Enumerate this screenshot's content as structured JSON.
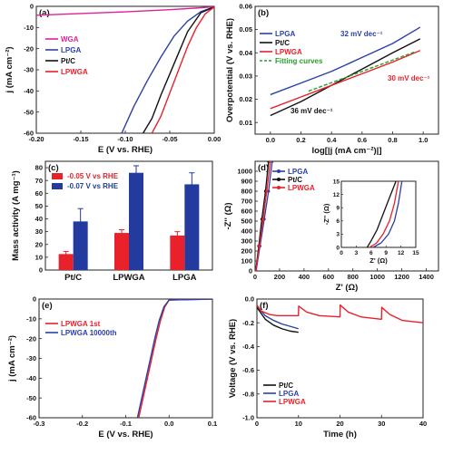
{
  "chart_data": [
    {
      "panel": "(a)",
      "type": "line",
      "xlabel": "E (V vs. RHE)",
      "ylabel": "j (mA cm⁻²)",
      "xlim": [
        -0.2,
        0.0
      ],
      "ylim": [
        -60,
        0
      ],
      "xticks": [
        "-0.20",
        "-0.15",
        "-0.10",
        "-0.05",
        "0.00"
      ],
      "yticks": [
        "0",
        "-10",
        "-20",
        "-30",
        "-40",
        "-50",
        "-60"
      ],
      "legend": "top-left",
      "series": [
        {
          "name": "WGA",
          "color": "#e0209a",
          "x": [
            -0.2,
            -0.15,
            -0.1,
            -0.05,
            -0.02,
            0.0
          ],
          "y": [
            -4.2,
            -3.4,
            -2.6,
            -1.6,
            -0.8,
            -0.2
          ]
        },
        {
          "name": "LPGA",
          "color": "#2b3fa8",
          "x": [
            -0.104,
            -0.09,
            -0.075,
            -0.06,
            -0.045,
            -0.03,
            -0.015,
            0.0
          ],
          "y": [
            -60,
            -47,
            -35,
            -24,
            -14,
            -7,
            -2.5,
            -0.3
          ]
        },
        {
          "name": "Pt/C",
          "color": "#111111",
          "x": [
            -0.08,
            -0.07,
            -0.06,
            -0.05,
            -0.04,
            -0.03,
            -0.015,
            0.0
          ],
          "y": [
            -60,
            -53,
            -42,
            -32,
            -22,
            -12,
            -3,
            -0.3
          ]
        },
        {
          "name": "LPWGA",
          "color": "#e8212b",
          "x": [
            -0.07,
            -0.06,
            -0.05,
            -0.04,
            -0.03,
            -0.02,
            -0.01,
            0.0
          ],
          "y": [
            -60,
            -52,
            -41,
            -30,
            -19,
            -10,
            -3.5,
            -0.3
          ]
        }
      ]
    },
    {
      "panel": "(b)",
      "type": "line",
      "xlabel": "log[|j (mA cm⁻²)|]",
      "ylabel": "Overpotential (V vs. RHE)",
      "xlim": [
        -0.1,
        1.1
      ],
      "ylim": [
        0.005,
        0.06
      ],
      "xticks": [
        "0.0",
        "0.2",
        "0.4",
        "0.6",
        "0.8",
        "1.0"
      ],
      "yticks": [
        "0.01",
        "0.02",
        "0.03",
        "0.04",
        "0.05",
        "0.06"
      ],
      "legend": "top-left",
      "series": [
        {
          "name": "LPGA",
          "color": "#2b3fa8",
          "x": [
            0.0,
            0.2,
            0.4,
            0.6,
            0.8,
            0.98
          ],
          "y": [
            0.022,
            0.027,
            0.032,
            0.038,
            0.044,
            0.051
          ]
        },
        {
          "name": "Pt/C",
          "color": "#111111",
          "x": [
            0.0,
            0.2,
            0.4,
            0.6,
            0.8,
            0.98
          ],
          "y": [
            0.013,
            0.019,
            0.026,
            0.033,
            0.04,
            0.046
          ]
        },
        {
          "name": "LPWGA",
          "color": "#e8212b",
          "x": [
            0.0,
            0.2,
            0.4,
            0.6,
            0.8,
            0.98
          ],
          "y": [
            0.016,
            0.021,
            0.026,
            0.031,
            0.036,
            0.041
          ]
        },
        {
          "name": "Fitting curves",
          "color": "#2aa02a",
          "dashed": true,
          "x": [
            0.25,
            0.95
          ],
          "y": [
            0.0235,
            0.0405
          ]
        }
      ],
      "annotations": [
        {
          "text": "32 mV dec⁻¹",
          "color": "#2b3fa8"
        },
        {
          "text": "30 mV dec⁻¹",
          "color": "#e8212b"
        },
        {
          "text": "36 mV dec⁻¹",
          "color": "#111111"
        }
      ]
    },
    {
      "panel": "(c)",
      "type": "bar",
      "ylabel": "Mass activity (A mg⁻¹)",
      "ylim": [
        0,
        85
      ],
      "yticks": [
        "0",
        "10",
        "20",
        "30",
        "40",
        "50",
        "60",
        "70",
        "80"
      ],
      "categories": [
        "Pt/C",
        "LPWGA",
        "LPGA"
      ],
      "legend": "top-left",
      "series": [
        {
          "name": "-0.05 V vs RHE",
          "color": "#e8212b",
          "values": [
            12.5,
            29,
            27
          ],
          "errors": [
            2,
            2.5,
            3
          ]
        },
        {
          "name": "-0.07 V vs RHE",
          "color": "#233a9e",
          "values": [
            38,
            76,
            67
          ],
          "errors": [
            10,
            5.5,
            9
          ]
        }
      ]
    },
    {
      "panel": "(d)",
      "type": "scatter",
      "xlabel": "Z' (Ω)",
      "ylabel": "-Z'' (Ω)",
      "xlim": [
        0,
        1500
      ],
      "ylim": [
        0,
        1100
      ],
      "xticks": [
        "0",
        "200",
        "400",
        "600",
        "800",
        "1000",
        "1200",
        "1400"
      ],
      "yticks": [
        "0",
        "100",
        "200",
        "300",
        "400",
        "500",
        "600",
        "700",
        "800",
        "900",
        "1000"
      ],
      "legend": "top-left",
      "series": [
        {
          "name": "LPGA",
          "color": "#2b3fa8",
          "x": [
            8,
            40,
            75,
            110,
            140
          ],
          "y": [
            0,
            250,
            520,
            800,
            1100
          ]
        },
        {
          "name": "Pt/C",
          "color": "#111111",
          "x": [
            5,
            30,
            55,
            85,
            110
          ],
          "y": [
            0,
            250,
            520,
            800,
            1100
          ]
        },
        {
          "name": "LPWGA",
          "color": "#e8212b",
          "x": [
            6,
            35,
            65,
            95,
            125
          ],
          "y": [
            0,
            250,
            520,
            800,
            1100
          ]
        }
      ],
      "inset": {
        "xlabel": "Z' (Ω)",
        "ylabel": "-Z'' (Ω)",
        "xlim": [
          0,
          15
        ],
        "ylim": [
          0,
          15
        ],
        "xticks": [
          "0",
          "3",
          "6",
          "9",
          "12",
          "15"
        ],
        "yticks": [
          "0",
          "3",
          "6",
          "9",
          "12",
          "15"
        ],
        "series": [
          {
            "name": "LPGA",
            "color": "#2b3fa8",
            "x": [
              6.4,
              8.0,
              9.5,
              10.7,
              11.5,
              12.2
            ],
            "y": [
              0,
              1,
              3,
              6,
              10,
              15
            ]
          },
          {
            "name": "Pt/C",
            "color": "#111111",
            "x": [
              5.2,
              6.0,
              7.2,
              8.4,
              9.6,
              11.0
            ],
            "y": [
              0,
              1.5,
              4,
              7.5,
              11,
              15
            ]
          },
          {
            "name": "LPWGA",
            "color": "#e8212b",
            "x": [
              5.7,
              7.1,
              8.4,
              9.7,
              10.7,
              11.5
            ],
            "y": [
              0,
              1,
              3,
              6,
              10,
              15
            ]
          }
        ]
      }
    },
    {
      "panel": "(e)",
      "type": "line",
      "xlabel": "E (V vs. RHE)",
      "ylabel": "j (mA cm⁻²)",
      "xlim": [
        -0.3,
        0.1
      ],
      "ylim": [
        -60,
        0
      ],
      "xticks": [
        "-0.3",
        "-0.2",
        "-0.1",
        "0.0",
        "0.1"
      ],
      "yticks": [
        "0",
        "-10",
        "-20",
        "-30",
        "-40",
        "-50",
        "-60"
      ],
      "legend": "top-left",
      "series": [
        {
          "name": "LPWGA 1st",
          "color": "#e8212b",
          "x": [
            -0.07,
            -0.06,
            -0.05,
            -0.04,
            -0.03,
            -0.02,
            -0.01,
            0.0,
            0.1
          ],
          "y": [
            -60,
            -50,
            -40,
            -30,
            -20,
            -11,
            -4,
            -0.5,
            0
          ]
        },
        {
          "name": "LPWGA 10000th",
          "color": "#2b3fa8",
          "x": [
            -0.073,
            -0.063,
            -0.053,
            -0.043,
            -0.033,
            -0.023,
            -0.012,
            0.0,
            0.1
          ],
          "y": [
            -60,
            -50,
            -40,
            -30,
            -20,
            -11,
            -4,
            -0.5,
            0
          ]
        }
      ]
    },
    {
      "panel": "(f)",
      "type": "line",
      "xlabel": "Time (h)",
      "ylabel": "Voltage (V vs. RHE)",
      "xlim": [
        0,
        40
      ],
      "ylim": [
        -1.0,
        0
      ],
      "xticks": [
        "0",
        "10",
        "20",
        "30",
        "40"
      ],
      "yticks": [
        "0.0",
        "-0.2",
        "-0.4",
        "-0.6",
        "-0.8",
        "-1.0"
      ],
      "legend": "bottom-left",
      "series": [
        {
          "name": "Pt/C",
          "color": "#111111",
          "x": [
            0,
            1,
            2,
            4,
            6,
            8,
            10
          ],
          "y": [
            -0.07,
            -0.12,
            -0.17,
            -0.22,
            -0.25,
            -0.27,
            -0.28
          ]
        },
        {
          "name": "LPGA",
          "color": "#2b3fa8",
          "x": [
            0,
            1,
            2,
            4,
            6,
            8,
            10
          ],
          "y": [
            -0.06,
            -0.1,
            -0.14,
            -0.18,
            -0.21,
            -0.23,
            -0.25
          ]
        },
        {
          "name": "LPWGA",
          "color": "#e8212b",
          "x": [
            0,
            1,
            3,
            5,
            8,
            10,
            10.05,
            12,
            15,
            19.9,
            20,
            20.05,
            22,
            25,
            29.9,
            30,
            30.05,
            32,
            35,
            40
          ],
          "y": [
            -0.05,
            -0.1,
            -0.13,
            -0.14,
            -0.14,
            -0.14,
            -0.06,
            -0.11,
            -0.14,
            -0.15,
            -0.15,
            -0.05,
            -0.11,
            -0.15,
            -0.17,
            -0.17,
            -0.07,
            -0.13,
            -0.18,
            -0.2
          ]
        }
      ]
    }
  ]
}
